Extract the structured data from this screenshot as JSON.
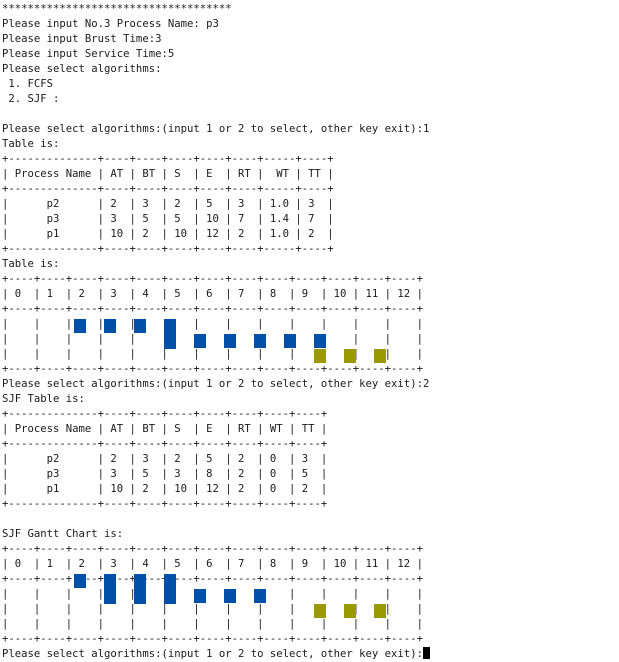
{
  "console": {
    "lines": [
      "************************************",
      "Please input No.3 Process Name: p3",
      "Please input Brust Time:3",
      "Please input Service Time:5",
      "Please select algorithms:",
      " 1. FCFS",
      " 2. SJF :",
      "",
      "Please select algorithms:(input 1 or 2 to select, other key exit):1",
      "Table is:",
      "+--------------+----+----+----+----+----+-----+----+",
      "| Process Name | AT | BT | S  | E  | RT |  WT | TT |",
      "+--------------+----+----+----+----+----+-----+----+",
      "|      p2      | 2  | 3  | 2  | 5  | 3  | 1.0 | 3  |",
      "|      p3      | 3  | 5  | 5  | 10 | 7  | 1.4 | 7  |",
      "|      p1      | 10 | 2  | 10 | 12 | 2  | 1.0 | 2  |",
      "+--------------+----+----+----+----+----+-----+----+",
      "Table is:",
      "+----+----+----+----+----+----+----+----+----+----+----+----+----+",
      "| 0  | 1  | 2  | 3  | 4  | 5  | 6  | 7  | 8  | 9  | 10 | 11 | 12 |",
      "+----+----+----+----+----+----+----+----+----+----+----+----+----+",
      "|    |    |    |    |    |    |    |    |    |    |    |    |    |",
      "|    |    |    |    |    |    |    |    |    |    |    |    |    |",
      "|    |    |    |    |    |    |    |    |    |    |    |    |    |",
      "+----+----+----+----+----+----+----+----+----+----+----+----+----+",
      "Please select algorithms:(input 1 or 2 to select, other key exit):2",
      "SJF Table is:",
      "+--------------+----+----+----+----+----+----+----+",
      "| Process Name | AT | BT | S  | E  | RT | WT | TT |",
      "+--------------+----+----+----+----+----+----+----+",
      "|      p2      | 2  | 3  | 2  | 5  | 2  | 0  | 3  |",
      "|      p3      | 3  | 5  | 3  | 8  | 2  | 0  | 5  |",
      "|      p1      | 10 | 2  | 10 | 12 | 2  | 0  | 2  |",
      "+--------------+----+----+----+----+----+----+----+",
      "",
      "SJF Gantt Chart is:",
      "+----+----+----+----+----+----+----+----+----+----+----+----+----+",
      "| 0  | 1  | 2  | 3  | 4  | 5  | 6  | 7  | 8  | 9  | 10 | 11 | 12 |",
      "+----+----+----+----+----+----+----+----+----+----+----+----+----+",
      "|    |    |    |    |    |    |    |    |    |    |    |    |    |",
      "|    |    |    |    |    |    |    |    |    |    |    |    |    |",
      "|    |    |    |    |    |    |    |    |    |    |    |    |    |",
      "+----+----+----+----+----+----+----+----+----+----+----+----+----+",
      "Please select algorithms:(input 1 or 2 to select, other key exit):"
    ],
    "colors": {
      "blue": "#0050a8",
      "olive": "#9a9a00",
      "text": "#1a1a1a",
      "background": "#ffffff"
    }
  },
  "gantt_blocks": [
    {
      "chart": "fcfs",
      "cells": [
        {
          "t": 2,
          "rows": "top",
          "color": "blue"
        },
        {
          "t": 3,
          "rows": "top",
          "color": "blue"
        },
        {
          "t": 4,
          "rows": "top",
          "color": "blue"
        },
        {
          "t": 5,
          "rows": "top-mid",
          "color": "blue"
        },
        {
          "t": 6,
          "rows": "mid",
          "color": "blue"
        },
        {
          "t": 7,
          "rows": "mid",
          "color": "blue"
        },
        {
          "t": 8,
          "rows": "mid",
          "color": "blue"
        },
        {
          "t": 9,
          "rows": "mid",
          "color": "blue"
        },
        {
          "t": 10,
          "rows": "mid",
          "color": "blue"
        },
        {
          "t": 10,
          "rows": "bottom",
          "color": "olive"
        },
        {
          "t": 11,
          "rows": "bottom",
          "color": "olive"
        },
        {
          "t": 12,
          "rows": "bottom",
          "color": "olive"
        }
      ]
    },
    {
      "chart": "sjf",
      "cells": [
        {
          "t": 2,
          "rows": "top",
          "color": "blue"
        },
        {
          "t": 3,
          "rows": "top-mid",
          "color": "blue"
        },
        {
          "t": 4,
          "rows": "top-mid",
          "color": "blue"
        },
        {
          "t": 5,
          "rows": "top-mid",
          "color": "blue"
        },
        {
          "t": 6,
          "rows": "mid",
          "color": "blue"
        },
        {
          "t": 7,
          "rows": "mid",
          "color": "blue"
        },
        {
          "t": 8,
          "rows": "mid",
          "color": "blue"
        },
        {
          "t": 10,
          "rows": "bottom",
          "color": "olive"
        },
        {
          "t": 11,
          "rows": "bottom",
          "color": "olive"
        },
        {
          "t": 12,
          "rows": "bottom",
          "color": "olive"
        }
      ]
    }
  ]
}
